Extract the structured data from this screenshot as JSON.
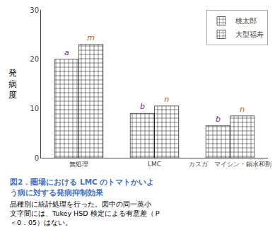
{
  "chart_data": {
    "type": "bar",
    "categories": [
      "無処理",
      "LMC",
      "カスガ゙マイシン・銅水和剤"
    ],
    "series": [
      {
        "name": "桃太郎",
        "values": [
          20.0,
          9.0,
          6.5
        ],
        "color": "#d0d0d0",
        "labels": [
          "a",
          "b",
          "b"
        ],
        "label_color": "#7030a0"
      },
      {
        "name": "大型福寿",
        "values": [
          23.0,
          10.5,
          8.5
        ],
        "color": "#404040",
        "labels": [
          "m",
          "n",
          "n"
        ],
        "label_color": "#c55a11"
      }
    ],
    "ylabel": "発病度",
    "ylim": [
      0,
      30
    ],
    "yticks": [
      0,
      10,
      20,
      30
    ],
    "grid": false,
    "legend": "upper right",
    "caption": [
      "図2．圏場における LMC のトマトかいよ",
      "う病に対する発病抑制効果"
    ],
    "caption_color": "#4472c4",
    "note": [
      "品種別に統計処理を行った。図中の同一英小",
      "文字間には、Tukey HSD 検定による有意差（Ｐ",
      "＜0．05）はない。"
    ]
  }
}
